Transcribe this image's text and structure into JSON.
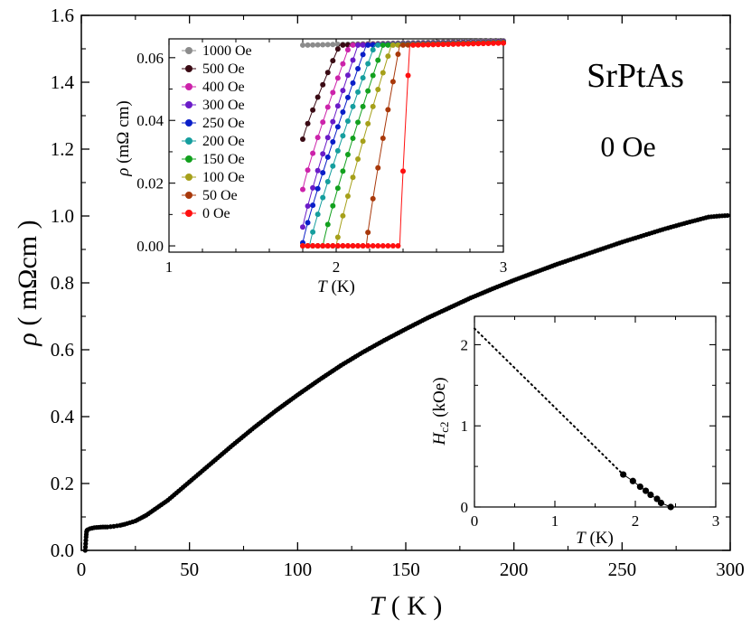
{
  "chart_data": [
    {
      "id": "main",
      "type": "scatter",
      "title": "",
      "xlabel_italic": "T",
      "xlabel_rest": " ( K )",
      "ylabel_italic": "ρ",
      "ylabel_rest": " ( mΩcm )",
      "xlim": [
        0,
        300
      ],
      "ylim": [
        0,
        1.6
      ],
      "xticks": [
        "0",
        "50",
        "100",
        "150",
        "200",
        "250",
        "300"
      ],
      "yticks": [
        "0.0",
        "0.2",
        "0.4",
        "0.6",
        "0.8",
        "1.0",
        "1.2",
        "1.4",
        "1.6"
      ],
      "annotations": [
        "SrPtAs",
        "0 Oe"
      ],
      "curve": {
        "color": "#000000",
        "x": [
          1.8,
          2.0,
          2.2,
          2.4,
          2.6,
          3,
          4,
          6,
          8,
          10,
          12,
          15,
          18,
          20,
          25,
          30,
          40,
          50,
          60,
          70,
          80,
          90,
          100,
          110,
          120,
          130,
          140,
          150,
          160,
          170,
          180,
          190,
          200,
          210,
          220,
          230,
          240,
          250,
          260,
          270,
          280,
          290,
          295,
          300
        ],
        "y": [
          0.0,
          0.02,
          0.04,
          0.055,
          0.06,
          0.062,
          0.065,
          0.068,
          0.069,
          0.07,
          0.07,
          0.072,
          0.075,
          0.078,
          0.088,
          0.105,
          0.15,
          0.205,
          0.26,
          0.315,
          0.368,
          0.418,
          0.465,
          0.51,
          0.553,
          0.592,
          0.628,
          0.662,
          0.695,
          0.725,
          0.755,
          0.782,
          0.808,
          0.832,
          0.856,
          0.878,
          0.9,
          0.922,
          0.942,
          0.962,
          0.98,
          0.997,
          1.0,
          1.002
        ]
      }
    },
    {
      "id": "inset1",
      "type": "scatter",
      "xlabel_italic": "T",
      "xlabel_rest": " (K)",
      "ylabel_italic": "ρ",
      "ylabel_rest": " (mΩ cm)",
      "xlim": [
        1,
        3
      ],
      "ylim": [
        -0.002,
        0.066
      ],
      "xticks": [
        "1",
        "2",
        "3"
      ],
      "yticks": [
        "0.00",
        "0.02",
        "0.04",
        "0.06"
      ],
      "legend_position": "top-left",
      "series": [
        {
          "name": "1000 Oe",
          "color": "#8c8c8c",
          "tc_onset": 1.75,
          "tc_end": 1.8,
          "floor": 0.063
        },
        {
          "name": "500 Oe",
          "color": "#3a0a14",
          "tc_onset": 1.8,
          "tc_end": 2.02,
          "floor": 0.034
        },
        {
          "name": "400 Oe",
          "color": "#cc22aa",
          "tc_onset": 1.8,
          "tc_end": 2.08,
          "floor": 0.018
        },
        {
          "name": "300 Oe",
          "color": "#6a1bc8",
          "tc_onset": 1.8,
          "tc_end": 2.13,
          "floor": 0.006
        },
        {
          "name": "250 Oe",
          "color": "#0a1ec8",
          "tc_onset": 1.8,
          "tc_end": 2.18,
          "floor": 0.001
        },
        {
          "name": "200 Oe",
          "color": "#159e9e",
          "tc_onset": 1.84,
          "tc_end": 2.23,
          "floor": 0.0
        },
        {
          "name": "150 Oe",
          "color": "#12a01e",
          "tc_onset": 1.92,
          "tc_end": 2.28,
          "floor": 0.0
        },
        {
          "name": "100 Oe",
          "color": "#a6a01a",
          "tc_onset": 2.0,
          "tc_end": 2.33,
          "floor": 0.0
        },
        {
          "name": "50 Oe",
          "color": "#a8380a",
          "tc_onset": 2.18,
          "tc_end": 2.38,
          "floor": 0.0
        },
        {
          "name": "0 Oe",
          "color": "#ff1010",
          "tc_onset": 2.38,
          "tc_end": 2.44,
          "floor": 0.0
        }
      ],
      "normal_state_value": 0.064
    },
    {
      "id": "inset2",
      "type": "scatter",
      "xlabel_italic": "T",
      "xlabel_rest": " (K)",
      "ylabel_main": "H",
      "ylabel_sub": "c2",
      "ylabel_rest": " (kOe)",
      "xlim": [
        0,
        3
      ],
      "ylim": [
        0,
        2.35
      ],
      "xticks": [
        "0",
        "1",
        "2",
        "3"
      ],
      "yticks": [
        "0",
        "1",
        "2"
      ],
      "points": {
        "x": [
          1.85,
          1.97,
          2.06,
          2.13,
          2.19,
          2.27,
          2.32,
          2.44
        ],
        "y": [
          0.4,
          0.32,
          0.25,
          0.2,
          0.15,
          0.1,
          0.05,
          0.0
        ]
      },
      "fit_line": {
        "x": [
          0,
          1.85
        ],
        "y": [
          2.2,
          0.4
        ]
      }
    }
  ]
}
